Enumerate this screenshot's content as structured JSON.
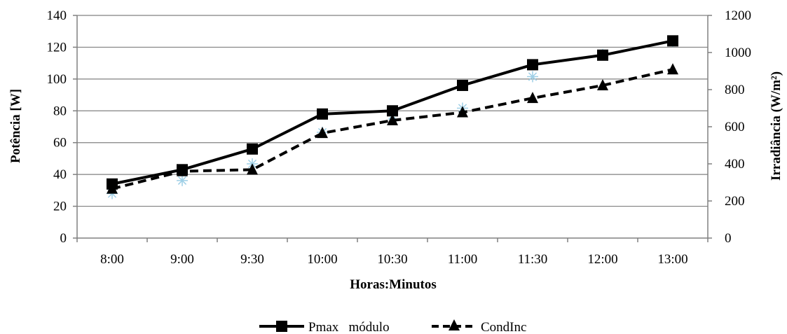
{
  "chart_data": {
    "type": "line",
    "categories": [
      "8:00",
      "9:00",
      "9:30",
      "10:00",
      "10:30",
      "11:00",
      "11:30",
      "12:00",
      "13:00"
    ],
    "xlabel": "Horas:Minutos",
    "ylabel": "Potência  [W]",
    "y2label": "Irradiância  (W/m²)",
    "ylim": [
      0,
      140
    ],
    "yticks": [
      0,
      20,
      40,
      60,
      80,
      100,
      120,
      140
    ],
    "y2lim": [
      0,
      1200
    ],
    "y2ticks": [
      0,
      200,
      400,
      600,
      800,
      1000,
      1200
    ],
    "grid": true,
    "legend_position": "bottom",
    "series": [
      {
        "name": "Pmax   módulo",
        "axis": "left",
        "style": "solid",
        "marker": "square",
        "color": "#000000",
        "values": [
          34,
          43,
          56,
          78,
          80,
          96,
          109,
          115,
          124
        ]
      },
      {
        "name": "CondInc",
        "axis": "left",
        "style": "dashed",
        "marker": "triangle",
        "color": "#000000",
        "values": [
          31,
          42,
          43,
          66,
          74,
          79,
          88,
          96,
          106
        ]
      },
      {
        "name": "",
        "axis": "right",
        "style": "marker-only",
        "marker": "asterisk",
        "color": "#9ecfe6",
        "values": [
          240,
          310,
          400,
          570,
          660,
          700,
          870,
          990,
          1060
        ]
      }
    ]
  }
}
